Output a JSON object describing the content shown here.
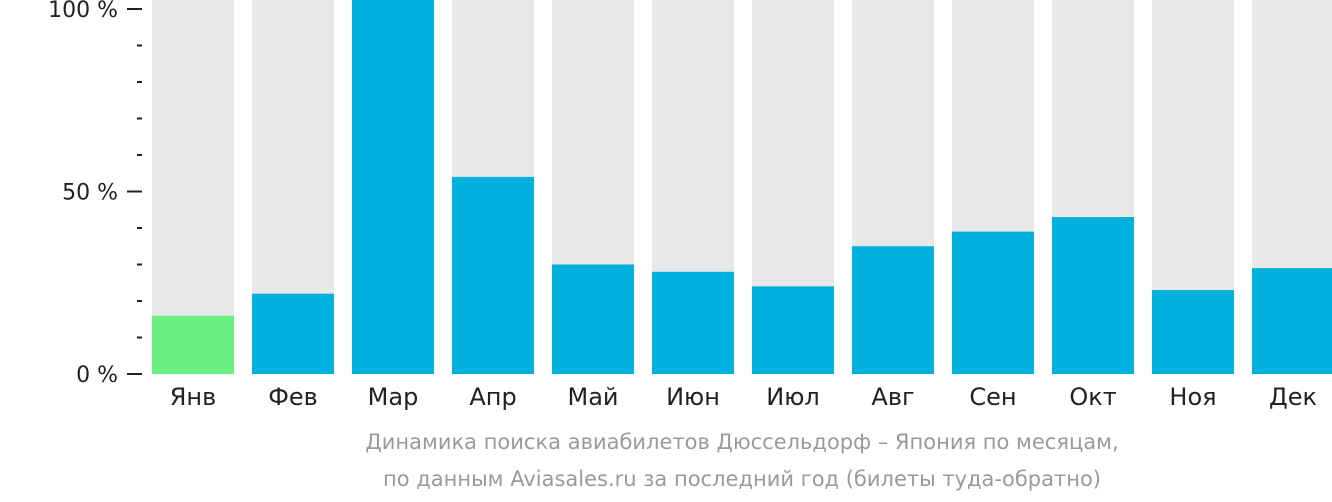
{
  "chart_data": {
    "type": "bar",
    "categories": [
      "Янв",
      "Фев",
      "Мар",
      "Апр",
      "Май",
      "Июн",
      "Июл",
      "Авг",
      "Сен",
      "Окт",
      "Ноя",
      "Дек"
    ],
    "values": [
      16,
      22,
      100,
      54,
      30,
      28,
      24,
      35,
      39,
      43,
      23,
      29
    ],
    "ylim": [
      0,
      100
    ],
    "yticks": [
      "0 %",
      "50 %",
      "100 %"
    ],
    "highlight_index": 0,
    "colors": {
      "bar": "#00b0dd",
      "highlight": "#6af080",
      "background_bar": "#e8e8e8"
    }
  },
  "caption": {
    "line1": "Динамика поиска авиабилетов Дюссельдорф – Япония по месяцам,",
    "line2": "по данным Aviasales.ru за последний год (билеты туда-обратно)"
  }
}
